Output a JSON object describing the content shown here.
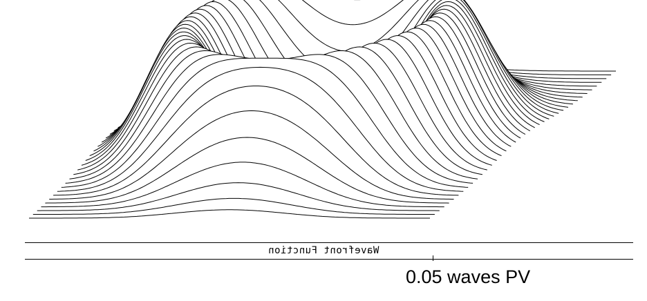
{
  "chart_data": {
    "type": "surface-wireframe",
    "title": "",
    "xlabel": "",
    "ylabel": "",
    "surface": "toroidal (ring-shaped) wavefront",
    "num_profile_lines": 40,
    "caption": "Wavefront Function",
    "caption_mirrored": true,
    "scale_label": "0.05 waves PV",
    "scale_pv_waves": 0.05,
    "grid": false,
    "colors": {
      "line": "#000000",
      "background": "#ffffff"
    }
  }
}
